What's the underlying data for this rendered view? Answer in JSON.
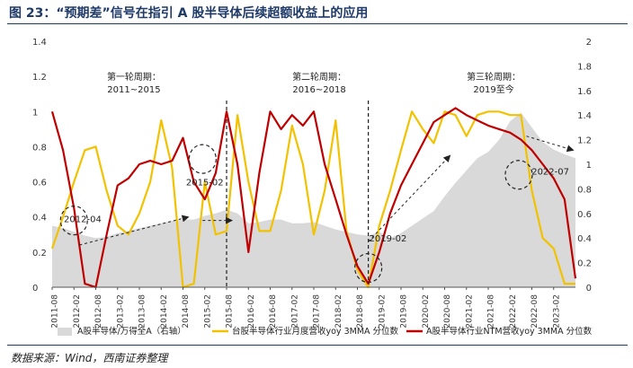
{
  "title": "图 23：“预期差”信号在指引 A 股半导体后续超额收益上的应用",
  "source": "数据来源：Wind，西南证券整理",
  "chart_data": {
    "type": "line",
    "title": "图 23：“预期差”信号在指引 A 股半导体后续超额收益上的应用",
    "y_left": {
      "ylim": [
        0,
        1.4
      ],
      "ticks": [
        "0",
        "0.2",
        "0.4",
        "0.6",
        "0.8",
        "1",
        "1.2",
        "1.4"
      ]
    },
    "y_right": {
      "ylim": [
        0,
        2
      ],
      "ticks": [
        "0",
        "0.2",
        "0.4",
        "0.6",
        "0.8",
        "1",
        "1.2",
        "1.4",
        "1.6",
        "1.8",
        "2"
      ]
    },
    "x_ticks": [
      "2011-08",
      "2012-02",
      "2012-08",
      "2013-02",
      "2013-08",
      "2014-02",
      "2014-08",
      "2015-02",
      "2015-08",
      "2016-02",
      "2016-08",
      "2017-02",
      "2017-08",
      "2018-02",
      "2018-08",
      "2019-02",
      "2019-08",
      "2020-02",
      "2020-08",
      "2021-02",
      "2021-08",
      "2022-02",
      "2022-08",
      "2023-02"
    ],
    "grid": false,
    "legend_position": "bottom",
    "series": [
      {
        "name": "A股半导体/万得全A（右轴）",
        "type": "area",
        "axis": "right",
        "color": "#d9d9d9",
        "x": [
          0,
          1,
          2,
          3,
          4,
          5,
          6,
          7,
          8,
          9,
          10,
          11,
          12,
          13,
          14,
          15,
          16,
          17,
          18,
          19,
          20,
          21,
          22,
          23,
          24,
          25,
          26,
          27,
          28,
          29,
          30,
          31,
          32,
          33,
          34,
          35,
          36,
          37,
          38,
          39,
          40,
          41,
          42,
          43,
          44,
          45,
          46,
          47,
          48
        ],
        "values": [
          0.5,
          0.48,
          0.45,
          0.42,
          0.4,
          0.41,
          0.44,
          0.46,
          0.48,
          0.5,
          0.52,
          0.54,
          0.55,
          0.55,
          0.58,
          0.6,
          0.63,
          0.6,
          0.52,
          0.53,
          0.55,
          0.55,
          0.52,
          0.52,
          0.53,
          0.5,
          0.47,
          0.45,
          0.43,
          0.42,
          0.45,
          0.4,
          0.44,
          0.5,
          0.56,
          0.62,
          0.74,
          0.85,
          0.95,
          1.05,
          1.1,
          1.2,
          1.35,
          1.42,
          1.3,
          1.18,
          1.12,
          1.08,
          1.05
        ]
      },
      {
        "name": "台股半导体行业月度营收yoy 3MMA 分位数",
        "type": "line",
        "axis": "left",
        "color": "#f2c200",
        "x": [
          0,
          1,
          2,
          3,
          4,
          5,
          6,
          7,
          8,
          9,
          10,
          11,
          12,
          13,
          14,
          15,
          16,
          17,
          18,
          19,
          20,
          21,
          22,
          23,
          24,
          25,
          26,
          27,
          28,
          29,
          30,
          31,
          32,
          33,
          34,
          35,
          36,
          37,
          38,
          39,
          40,
          41,
          42,
          43,
          44,
          45,
          46,
          47,
          48
        ],
        "values": [
          0.22,
          0.4,
          0.6,
          0.78,
          0.8,
          0.55,
          0.35,
          0.3,
          0.42,
          0.6,
          0.95,
          0.68,
          0.0,
          0.02,
          0.6,
          0.3,
          0.32,
          0.98,
          0.6,
          0.32,
          0.32,
          0.55,
          0.92,
          0.7,
          0.3,
          0.55,
          0.95,
          0.32,
          0.1,
          0.0,
          0.35,
          0.55,
          0.78,
          1.0,
          0.9,
          0.82,
          1.0,
          0.98,
          0.86,
          0.98,
          1.0,
          1.0,
          0.98,
          0.98,
          0.55,
          0.28,
          0.22,
          0.02,
          0.02
        ]
      },
      {
        "name": "A股半导体行业NTM营收yoy 3MMA 分位数",
        "type": "line",
        "axis": "left",
        "color": "#c00000",
        "x": [
          0,
          1,
          2,
          3,
          4,
          5,
          6,
          7,
          8,
          9,
          10,
          11,
          12,
          13,
          14,
          15,
          16,
          17,
          18,
          19,
          20,
          21,
          22,
          23,
          24,
          25,
          26,
          27,
          28,
          29,
          30,
          31,
          32,
          33,
          34,
          35,
          36,
          37,
          38,
          39,
          40,
          41,
          42,
          43,
          44,
          45,
          46,
          47,
          48
        ],
        "values": [
          1.0,
          0.78,
          0.45,
          0.02,
          0.0,
          0.3,
          0.58,
          0.62,
          0.7,
          0.72,
          0.7,
          0.72,
          0.85,
          0.6,
          0.5,
          0.65,
          1.0,
          0.7,
          0.2,
          0.65,
          1.0,
          0.9,
          0.98,
          0.92,
          1.0,
          0.7,
          0.5,
          0.3,
          0.12,
          0.02,
          0.2,
          0.42,
          0.58,
          0.7,
          0.82,
          0.94,
          0.98,
          1.02,
          0.98,
          0.95,
          0.92,
          0.9,
          0.88,
          0.84,
          0.78,
          0.7,
          0.62,
          0.5,
          0.05
        ]
      }
    ],
    "annotations": [
      {
        "text": "第一轮周期：",
        "x": 7.5,
        "y": 1.18
      },
      {
        "text": "2011~2015",
        "x": 7.5,
        "y": 1.11
      },
      {
        "text": "第二轮周期：",
        "x": 24.5,
        "y": 1.18
      },
      {
        "text": "2016~2018",
        "x": 24.5,
        "y": 1.11
      },
      {
        "text": "第三轮周期：",
        "x": 40.5,
        "y": 1.18
      },
      {
        "text": "2019至今",
        "x": 40.5,
        "y": 1.11
      },
      {
        "text": "2012-04",
        "x": 2.8,
        "y": 0.37
      },
      {
        "text": "2015-02",
        "x": 14.0,
        "y": 0.58
      },
      {
        "text": "2019-02",
        "x": 30.8,
        "y": 0.26
      },
      {
        "text": "2022-07",
        "x": 45.7,
        "y": 0.64
      }
    ],
    "circles": [
      {
        "x": 2.0,
        "y": 0.38
      },
      {
        "x": 13.8,
        "y": 0.73
      },
      {
        "x": 29.0,
        "y": 0.11
      },
      {
        "x": 42.8,
        "y": 0.64
      }
    ],
    "trend_arrows": [
      {
        "from": [
          2.5,
          0.24
        ],
        "to": [
          12.5,
          0.4
        ]
      },
      {
        "from": [
          13.8,
          0.38
        ],
        "to": [
          16.5,
          0.38
        ]
      },
      {
        "from": [
          29.0,
          0.26
        ],
        "to": [
          36.5,
          0.75
        ]
      },
      {
        "from": [
          43.5,
          0.86
        ],
        "to": [
          47.8,
          0.78
        ]
      }
    ],
    "dividers": [
      16.0,
      29.0
    ]
  },
  "legend": [
    {
      "label": "A股半导体/万得全A（右轴）",
      "swatch": "area",
      "color": "#d9d9d9"
    },
    {
      "label": "台股半导体行业月度营收yoy 3MMA 分位数",
      "swatch": "line",
      "color": "#f2c200"
    },
    {
      "label": "A股半导体行业NTM营收yoy 3MMA 分位数",
      "swatch": "line",
      "color": "#c00000"
    }
  ]
}
